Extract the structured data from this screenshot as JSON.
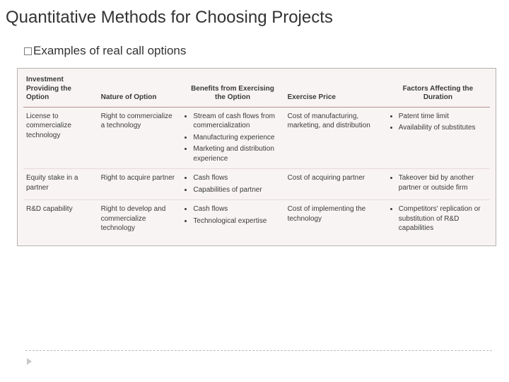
{
  "title": "Quantitative Methods for Choosing Projects",
  "subtitle": {
    "prefix": "Examples",
    "rest": " of real call options"
  },
  "table": {
    "background_color": "#f8f4f4",
    "border_color": "#b8b0b0",
    "header_rule_color": "#b38f8f",
    "row_rule_color": "#e6dada",
    "font_size_pt": 10,
    "headers": [
      "Investment Providing the Option",
      "Nature of Option",
      "Benefits from Exercising the Option",
      "Exercise Price",
      "Factors Affecting the Duration"
    ],
    "header_align": [
      "left",
      "left",
      "center",
      "left",
      "center"
    ],
    "col_widths_pct": [
      16,
      18,
      22,
      22,
      22
    ],
    "rows": [
      {
        "investment": "License to commercialize technology",
        "nature": "Right to commercialize a technology",
        "benefits": [
          "Stream of cash flows from commercialization",
          "Manufacturing experience",
          "Marketing and distribution experience"
        ],
        "exercise_price": "Cost of manufacturing, marketing, and distribution",
        "factors": [
          "Patent time limit",
          "Availability of substitutes"
        ]
      },
      {
        "investment": "Equity stake in a partner",
        "nature": "Right to acquire partner",
        "benefits": [
          "Cash flows",
          "Capabilities of partner"
        ],
        "exercise_price": "Cost of acquiring partner",
        "factors": [
          "Takeover bid by another partner or outside firm"
        ]
      },
      {
        "investment": "R&D capability",
        "nature": "Right to develop and commercialize technology",
        "benefits": [
          "Cash flows",
          "Technological expertise"
        ],
        "exercise_price": "Cost of implementing the technology",
        "factors": [
          "Competitors' replication or substitution of R&D capabilities"
        ]
      }
    ]
  },
  "footer": {
    "dashed_rule_color": "#bcbcbc",
    "arrow_color": "#c9c9c9"
  }
}
